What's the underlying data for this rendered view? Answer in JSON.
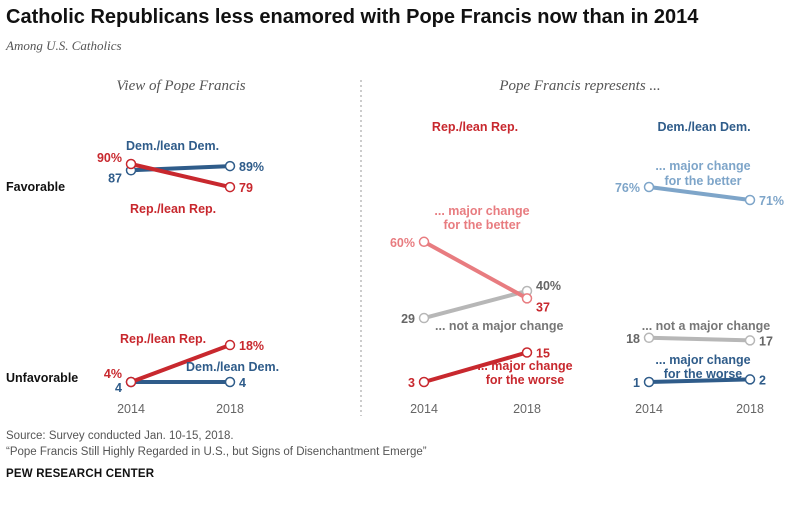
{
  "title": "Catholic Republicans less enamored with Pope Francis now than in 2014",
  "subtitle": "Among U.S. Catholics",
  "source": {
    "line1": "Source: Survey conducted Jan. 10-15, 2018.",
    "line2": "“Pope Francis Still Highly Regarded in U.S., but Signs of Disenchantment Emerge”"
  },
  "brand": "PEW RESEARCH CENTER",
  "colors": {
    "rep": "#c8282e",
    "dem": "#2f5c8a",
    "rep_light": "#e87c80",
    "dem_light": "#7ea5c9",
    "gray": "#b7b7b7",
    "divider": "#9a9a9a"
  },
  "chart_data": [
    {
      "type": "line",
      "panel_title": "View of Pope Francis",
      "x": [
        "2014",
        "2018"
      ],
      "row_labels": [
        "Favorable",
        "Unfavorable"
      ],
      "series": [
        {
          "name": "Dem./lean Dem.",
          "row": "Favorable",
          "values": [
            87,
            89
          ],
          "labels": [
            "87",
            "89%"
          ],
          "color": "dem"
        },
        {
          "name": "Rep./lean Rep.",
          "row": "Favorable",
          "values": [
            90,
            79
          ],
          "labels": [
            "90%",
            "79"
          ],
          "color": "rep"
        },
        {
          "name": "Rep./lean Rep.",
          "row": "Unfavorable",
          "values": [
            4,
            18
          ],
          "labels": [
            "4%",
            "18%"
          ],
          "color": "rep"
        },
        {
          "name": "Dem./lean Dem.",
          "row": "Unfavorable",
          "values": [
            4,
            4
          ],
          "labels": [
            "4",
            "4"
          ],
          "color": "dem"
        }
      ]
    },
    {
      "type": "line",
      "panel_title": "Pope Francis represents ...",
      "group": "Rep./lean Rep.",
      "x": [
        "2014",
        "2018"
      ],
      "series": [
        {
          "name": "... major change for the better",
          "values": [
            60,
            37
          ],
          "labels": [
            "60%",
            "37"
          ],
          "color": "rep_light"
        },
        {
          "name": "... not a major change",
          "values": [
            29,
            40
          ],
          "labels": [
            "29",
            "40%"
          ],
          "color": "gray"
        },
        {
          "name": "... major change for the worse",
          "values": [
            3,
            15
          ],
          "labels": [
            "3",
            "15"
          ],
          "color": "rep"
        }
      ]
    },
    {
      "type": "line",
      "group": "Dem./lean Dem.",
      "x": [
        "2014",
        "2018"
      ],
      "series": [
        {
          "name": "... major change for the better",
          "values": [
            76,
            71
          ],
          "labels": [
            "76%",
            "71%"
          ],
          "color": "dem_light"
        },
        {
          "name": "... not a major change",
          "values": [
            18,
            17
          ],
          "labels": [
            "18",
            "17"
          ],
          "color": "gray"
        },
        {
          "name": "... major change for the worse",
          "values": [
            1,
            2
          ],
          "labels": [
            "1",
            "2"
          ],
          "color": "dem"
        }
      ]
    }
  ]
}
